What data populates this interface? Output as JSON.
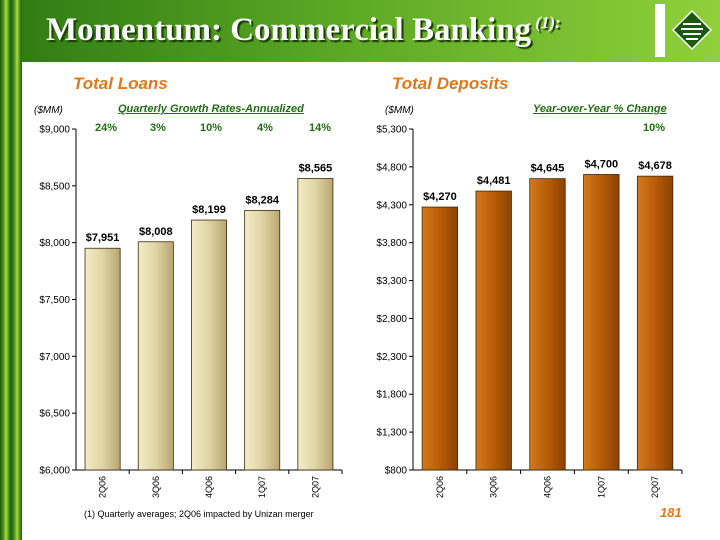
{
  "header": {
    "title": "Momentum: Commercial Banking",
    "footnote_marker": "(1):"
  },
  "colors": {
    "title_bar": "#4e9a20",
    "accent_orange": "#e0781a",
    "growth_green": "#1f6e12",
    "loans_bar": "#e0d4a4",
    "deposits_bar": "#b85c06"
  },
  "loans": {
    "title": "Total Loans",
    "unit": "($MM)",
    "growth_title": "Quarterly Growth Rates-Annualized",
    "growth_rates": [
      "24%",
      "3%",
      "10%",
      "4%",
      "14%"
    ]
  },
  "deposits": {
    "title": "Total Deposits",
    "unit": "($MM)",
    "growth_title": "Year-over-Year % Change",
    "growth_rates": [
      "",
      "",
      "",
      "",
      "10%"
    ]
  },
  "chart_data": [
    {
      "type": "bar",
      "title": "Total Loans",
      "categories": [
        "2Q06",
        "3Q06",
        "4Q06",
        "1Q07",
        "2Q07"
      ],
      "values": [
        7951,
        8008,
        8199,
        8284,
        8565
      ],
      "value_labels": [
        "$7,951",
        "$8,008",
        "$8,199",
        "$8,284",
        "$8,565"
      ],
      "ylabel": "($MM)",
      "ylim": [
        6000,
        9000
      ],
      "yticks": [
        6000,
        6500,
        7000,
        7500,
        8000,
        8500,
        9000
      ],
      "ytick_labels": [
        "$6,000",
        "$6,500",
        "$7,000",
        "$7,500",
        "$8,000",
        "$8,500",
        "$9,000"
      ],
      "grid": false
    },
    {
      "type": "bar",
      "title": "Total Deposits",
      "categories": [
        "2Q06",
        "3Q06",
        "4Q06",
        "1Q07",
        "2Q07"
      ],
      "values": [
        4270,
        4481,
        4645,
        4700,
        4678
      ],
      "value_labels": [
        "$4,270",
        "$4,481",
        "$4,645",
        "$4,700",
        "$4,678"
      ],
      "ylabel": "($MM)",
      "ylim": [
        800,
        5300
      ],
      "yticks": [
        800,
        1300,
        1800,
        2300,
        2800,
        3300,
        3800,
        4300,
        4800,
        5300
      ],
      "ytick_labels": [
        "$800",
        "$1,300",
        "$1,800",
        "$2,300",
        "$2,800",
        "$3,300",
        "$3,800",
        "$4,300",
        "$4,800",
        "$5,300"
      ],
      "grid": false
    }
  ],
  "footer": {
    "footnote": "(1) Quarterly averages; 2Q06 impacted by Unizan merger",
    "page_number": "181"
  }
}
